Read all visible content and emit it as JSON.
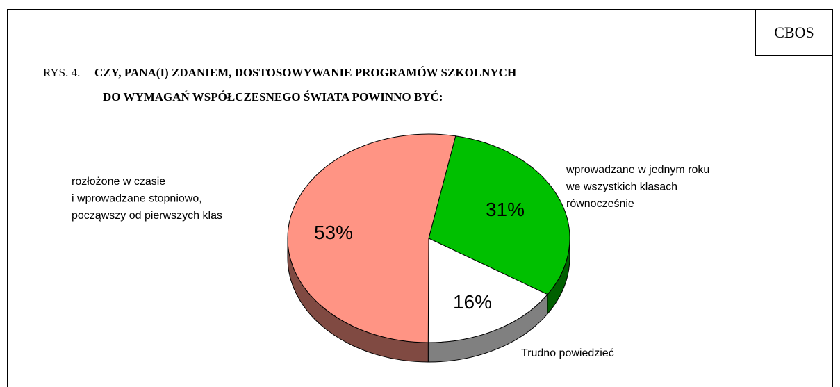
{
  "source": "CBOS",
  "chart_data": {
    "type": "pie",
    "figure_label": "RYS. 4.",
    "title": [
      "CZY, PANA(I) ZDANIEM, DOSTOSOWYWANIE PROGRAMÓW SZKOLNYCH",
      "DO WYMAGAŃ WSPÓŁCZESNEGO ŚWIATA POWINNO BYĆ:"
    ],
    "categories": [
      [
        "wprowadzane w jednym roku",
        "we wszystkich klasach",
        "równocześnie"
      ],
      [
        "Trudno powiedzieć"
      ],
      [
        "rozłożone w czasie",
        "i wprowadzane stopniowo,",
        "począwszy od pierwszych klas"
      ]
    ],
    "values": [
      31,
      16,
      53
    ],
    "value_labels": [
      "31%",
      "16%",
      "53%"
    ],
    "colors": [
      "#00c000",
      "#ffffff",
      "#ff9484"
    ]
  }
}
